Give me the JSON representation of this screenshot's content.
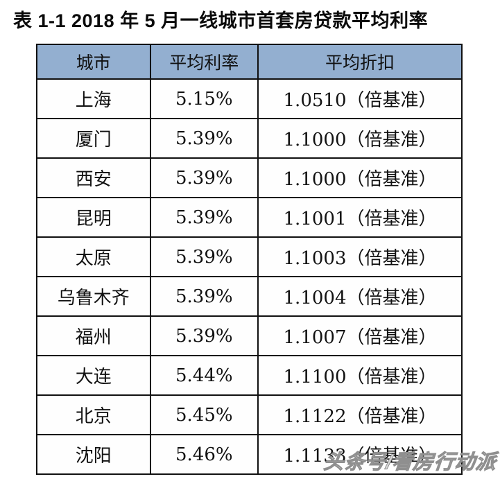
{
  "title": "表 1-1 2018 年 5 月一线城市首套房贷款平均利率",
  "watermark": "头条号/看房行动派",
  "colors": {
    "header_bg": "#93afd0",
    "border": "#101010",
    "row_bg": "#fefefe",
    "text": "#111111",
    "watermark_gray": "#8f8f8f"
  },
  "chart_data": {
    "type": "table",
    "title": "表 1-1 2018 年 5 月一线城市首套房贷款平均利率",
    "columns": [
      "城市",
      "平均利率",
      "平均折扣"
    ],
    "rows": [
      [
        "上海",
        "5.15%",
        "1.0510（倍基准）"
      ],
      [
        "厦门",
        "5.39%",
        "1.1000（倍基准）"
      ],
      [
        "西安",
        "5.39%",
        "1.1000（倍基准）"
      ],
      [
        "昆明",
        "5.39%",
        "1.1001（倍基准）"
      ],
      [
        "太原",
        "5.39%",
        "1.1003（倍基准）"
      ],
      [
        "乌鲁木齐",
        "5.39%",
        "1.1004（倍基准）"
      ],
      [
        "福州",
        "5.39%",
        "1.1007（倍基准）"
      ],
      [
        "大连",
        "5.44%",
        "1.1100（倍基准）"
      ],
      [
        "北京",
        "5.45%",
        "1.1122（倍基准）"
      ],
      [
        "沈阳",
        "5.46%",
        "1.1133（倍基准）"
      ]
    ],
    "cities": [
      "上海",
      "厦门",
      "西安",
      "昆明",
      "太原",
      "乌鲁木齐",
      "福州",
      "大连",
      "北京",
      "沈阳"
    ],
    "avg_rate_percent": [
      5.15,
      5.39,
      5.39,
      5.39,
      5.39,
      5.39,
      5.39,
      5.44,
      5.45,
      5.46
    ],
    "avg_discount_multiplier": [
      1.051,
      1.1,
      1.1,
      1.1001,
      1.1003,
      1.1004,
      1.1007,
      1.11,
      1.1122,
      1.1133
    ]
  }
}
